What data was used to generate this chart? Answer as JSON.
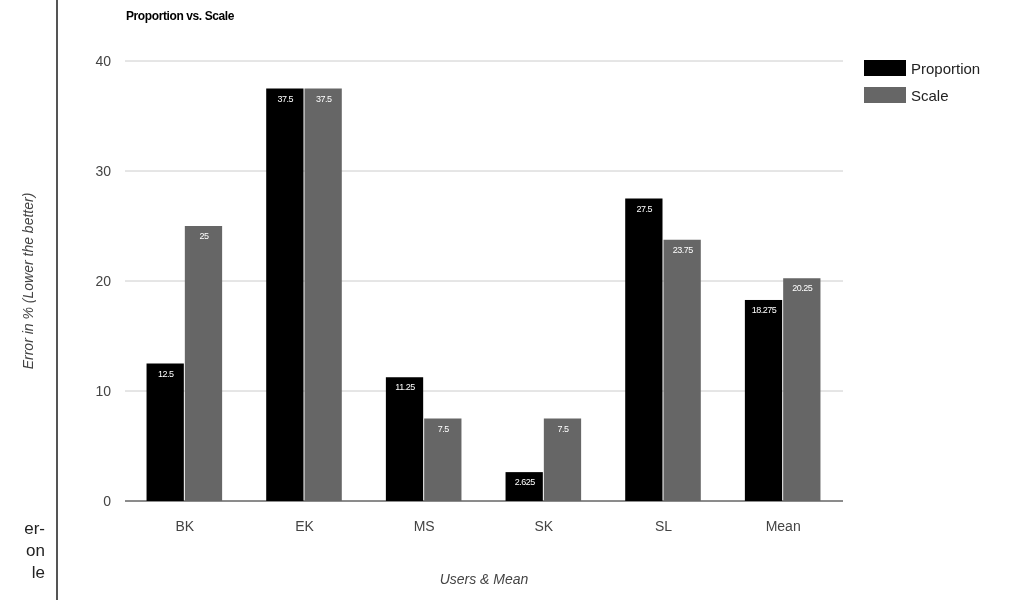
{
  "chart_data": {
    "type": "bar",
    "title": "Proportion vs. Scale",
    "xlabel": "Users & Mean",
    "ylabel": "Error in % (Lower the better)",
    "categories": [
      "BK",
      "EK",
      "MS",
      "SK",
      "SL",
      "Mean"
    ],
    "series": [
      {
        "name": "Proportion",
        "color": "#000000",
        "values": [
          12.5,
          37.5,
          11.25,
          2.625,
          27.5,
          18.275
        ]
      },
      {
        "name": "Scale",
        "color": "#666666",
        "values": [
          25,
          37.5,
          7.5,
          7.5,
          23.75,
          20.25
        ]
      }
    ],
    "ylim": [
      0,
      40
    ],
    "yticks": [
      0,
      10,
      20,
      30,
      40
    ],
    "grid": "y",
    "legend": "top right",
    "data_labels": true,
    "annotations": [
      "er-",
      "on",
      "le"
    ]
  }
}
